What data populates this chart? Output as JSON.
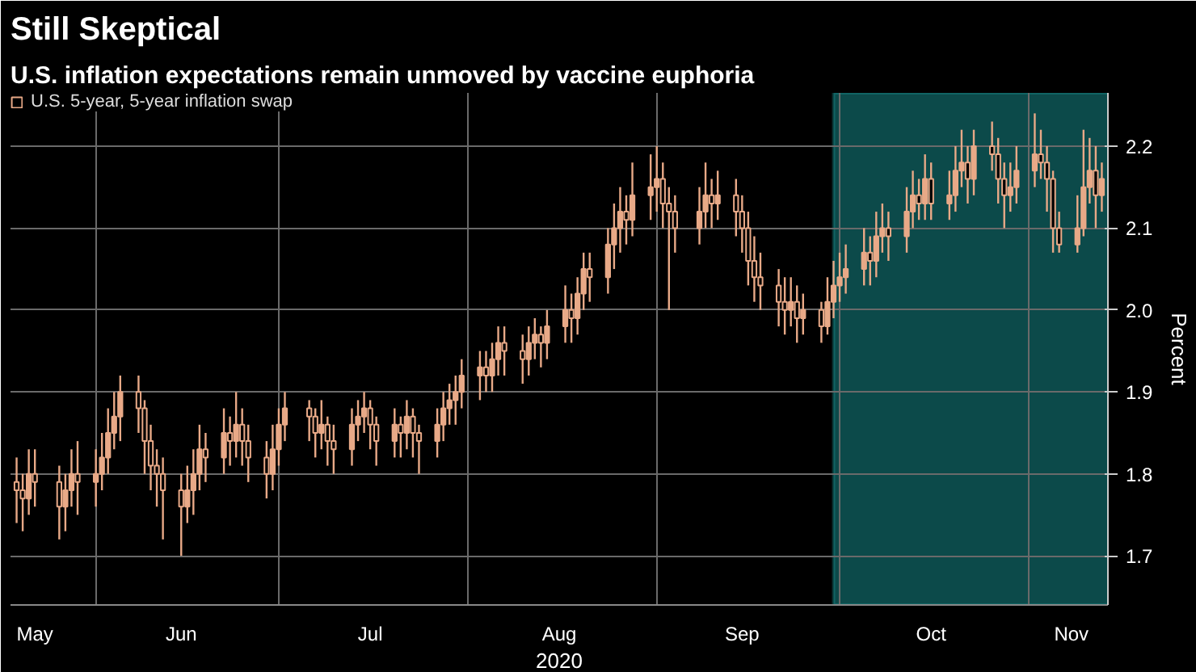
{
  "chart_data": {
    "type": "candlestick",
    "title": "Still Skeptical",
    "subtitle": "U.S. inflation expectations remain unmoved by vaccine euphoria",
    "xlabel": "2020",
    "ylabel": "Percent",
    "legend": "top left",
    "grid": true,
    "x": [
      "2020-05-19",
      "2020-05-20",
      "2020-05-21",
      "2020-05-22",
      "2020-05-26",
      "2020-05-27",
      "2020-05-28",
      "2020-05-29",
      "2020-06-01",
      "2020-06-02",
      "2020-06-03",
      "2020-06-04",
      "2020-06-05",
      "2020-06-08",
      "2020-06-09",
      "2020-06-10",
      "2020-06-11",
      "2020-06-12",
      "2020-06-15",
      "2020-06-16",
      "2020-06-17",
      "2020-06-18",
      "2020-06-19",
      "2020-06-22",
      "2020-06-23",
      "2020-06-24",
      "2020-06-25",
      "2020-06-26",
      "2020-06-29",
      "2020-06-30",
      "2020-07-01",
      "2020-07-02",
      "2020-07-06",
      "2020-07-07",
      "2020-07-08",
      "2020-07-09",
      "2020-07-10",
      "2020-07-13",
      "2020-07-14",
      "2020-07-15",
      "2020-07-16",
      "2020-07-17",
      "2020-07-20",
      "2020-07-21",
      "2020-07-22",
      "2020-07-23",
      "2020-07-24",
      "2020-07-27",
      "2020-07-28",
      "2020-07-29",
      "2020-07-30",
      "2020-07-31",
      "2020-08-03",
      "2020-08-04",
      "2020-08-05",
      "2020-08-06",
      "2020-08-07",
      "2020-08-10",
      "2020-08-11",
      "2020-08-12",
      "2020-08-13",
      "2020-08-14",
      "2020-08-17",
      "2020-08-18",
      "2020-08-19",
      "2020-08-20",
      "2020-08-21",
      "2020-08-24",
      "2020-08-25",
      "2020-08-26",
      "2020-08-27",
      "2020-08-28",
      "2020-08-31",
      "2020-09-01",
      "2020-09-02",
      "2020-09-03",
      "2020-09-04",
      "2020-09-08",
      "2020-09-09",
      "2020-09-10",
      "2020-09-11",
      "2020-09-14",
      "2020-09-15",
      "2020-09-16",
      "2020-09-17",
      "2020-09-18",
      "2020-09-21",
      "2020-09-22",
      "2020-09-23",
      "2020-09-24",
      "2020-09-25",
      "2020-09-28",
      "2020-09-29",
      "2020-09-30",
      "2020-10-01",
      "2020-10-02",
      "2020-10-05",
      "2020-10-06",
      "2020-10-07",
      "2020-10-08",
      "2020-10-09",
      "2020-10-12",
      "2020-10-13",
      "2020-10-14",
      "2020-10-15",
      "2020-10-16",
      "2020-10-19",
      "2020-10-20",
      "2020-10-21",
      "2020-10-22",
      "2020-10-23",
      "2020-10-26",
      "2020-10-27",
      "2020-10-28",
      "2020-10-29",
      "2020-10-30",
      "2020-11-02",
      "2020-11-03",
      "2020-11-04",
      "2020-11-05",
      "2020-11-06",
      "2020-11-09",
      "2020-11-10",
      "2020-11-11",
      "2020-11-12",
      "2020-11-13"
    ],
    "xlim": [
      "2020-05-18",
      "2020-11-14"
    ],
    "xticks": [
      {
        "value": "2020-05-22",
        "label": "May"
      },
      {
        "value": "2020-06-01",
        "label": null
      },
      {
        "value": "2020-06-15",
        "label": "Jun"
      },
      {
        "value": "2020-07-01",
        "label": null
      },
      {
        "value": "2020-07-16",
        "label": "Jul"
      },
      {
        "value": "2020-08-01",
        "label": null
      },
      {
        "value": "2020-08-16",
        "label": "Aug"
      },
      {
        "value": "2020-09-01",
        "label": null
      },
      {
        "value": "2020-09-15",
        "label": "Sep"
      },
      {
        "value": "2020-10-01",
        "label": null
      },
      {
        "value": "2020-10-16",
        "label": "Oct"
      },
      {
        "value": "2020-11-01",
        "label": null
      },
      {
        "value": "2020-11-08",
        "label": "Nov"
      }
    ],
    "ylim": [
      1.64,
      2.265
    ],
    "yticks": [
      1.7,
      1.8,
      1.9,
      {
        "value": 2.0,
        "label": "2.0"
      },
      2.1,
      2.2
    ],
    "bands": [
      {
        "axis": "x",
        "from": "2020-09-30",
        "to": "2020-11-16",
        "color": "#1aa3a3"
      }
    ],
    "series": [
      {
        "name": "U.S. 5-year, 5-year inflation swap",
        "color": "#e8a987",
        "ohlc": [
          [
            1.79,
            1.82,
            1.74,
            1.78
          ],
          [
            1.78,
            1.8,
            1.73,
            1.77
          ],
          [
            1.77,
            1.83,
            1.75,
            1.8
          ],
          [
            1.8,
            1.83,
            1.76,
            1.79
          ],
          [
            1.79,
            1.81,
            1.72,
            1.76
          ],
          [
            1.76,
            1.8,
            1.73,
            1.78
          ],
          [
            1.78,
            1.83,
            1.76,
            1.8
          ],
          [
            1.8,
            1.84,
            1.75,
            1.79
          ],
          [
            1.79,
            1.83,
            1.76,
            1.8
          ],
          [
            1.8,
            1.85,
            1.78,
            1.82
          ],
          [
            1.82,
            1.88,
            1.8,
            1.85
          ],
          [
            1.85,
            1.9,
            1.83,
            1.87
          ],
          [
            1.87,
            1.92,
            1.84,
            1.9
          ],
          [
            1.9,
            1.92,
            1.85,
            1.88
          ],
          [
            1.88,
            1.89,
            1.8,
            1.84
          ],
          [
            1.84,
            1.86,
            1.78,
            1.81
          ],
          [
            1.81,
            1.83,
            1.76,
            1.8
          ],
          [
            1.8,
            1.82,
            1.72,
            1.78
          ],
          [
            1.78,
            1.8,
            1.7,
            1.76
          ],
          [
            1.76,
            1.81,
            1.74,
            1.78
          ],
          [
            1.78,
            1.83,
            1.75,
            1.8
          ],
          [
            1.8,
            1.86,
            1.78,
            1.83
          ],
          [
            1.83,
            1.85,
            1.79,
            1.82
          ],
          [
            1.82,
            1.88,
            1.8,
            1.85
          ],
          [
            1.85,
            1.87,
            1.81,
            1.84
          ],
          [
            1.84,
            1.9,
            1.82,
            1.86
          ],
          [
            1.86,
            1.88,
            1.81,
            1.84
          ],
          [
            1.84,
            1.86,
            1.79,
            1.82
          ],
          [
            1.82,
            1.84,
            1.77,
            1.8
          ],
          [
            1.8,
            1.86,
            1.78,
            1.83
          ],
          [
            1.83,
            1.88,
            1.81,
            1.86
          ],
          [
            1.86,
            1.9,
            1.84,
            1.88
          ],
          [
            1.88,
            1.89,
            1.84,
            1.87
          ],
          [
            1.87,
            1.88,
            1.82,
            1.85
          ],
          [
            1.85,
            1.89,
            1.83,
            1.86
          ],
          [
            1.86,
            1.87,
            1.81,
            1.84
          ],
          [
            1.84,
            1.86,
            1.8,
            1.83
          ],
          [
            1.83,
            1.88,
            1.81,
            1.86
          ],
          [
            1.86,
            1.89,
            1.84,
            1.87
          ],
          [
            1.87,
            1.9,
            1.85,
            1.88
          ],
          [
            1.88,
            1.89,
            1.83,
            1.86
          ],
          [
            1.86,
            1.87,
            1.81,
            1.84
          ],
          [
            1.84,
            1.88,
            1.82,
            1.86
          ],
          [
            1.86,
            1.87,
            1.82,
            1.85
          ],
          [
            1.85,
            1.89,
            1.83,
            1.87
          ],
          [
            1.87,
            1.88,
            1.82,
            1.85
          ],
          [
            1.85,
            1.86,
            1.8,
            1.84
          ],
          [
            1.84,
            1.88,
            1.82,
            1.86
          ],
          [
            1.86,
            1.9,
            1.84,
            1.88
          ],
          [
            1.88,
            1.91,
            1.86,
            1.89
          ],
          [
            1.89,
            1.92,
            1.86,
            1.9
          ],
          [
            1.9,
            1.94,
            1.88,
            1.92
          ],
          [
            1.92,
            1.95,
            1.89,
            1.93
          ],
          [
            1.93,
            1.95,
            1.9,
            1.92
          ],
          [
            1.92,
            1.96,
            1.9,
            1.94
          ],
          [
            1.94,
            1.98,
            1.92,
            1.96
          ],
          [
            1.96,
            1.98,
            1.92,
            1.95
          ],
          [
            1.95,
            1.97,
            1.91,
            1.94
          ],
          [
            1.94,
            1.98,
            1.92,
            1.96
          ],
          [
            1.96,
            1.99,
            1.94,
            1.97
          ],
          [
            1.97,
            1.98,
            1.93,
            1.96
          ],
          [
            1.96,
            2.0,
            1.94,
            1.98
          ],
          [
            1.98,
            2.03,
            1.96,
            2.0
          ],
          [
            2.0,
            2.02,
            1.96,
            1.99
          ],
          [
            1.99,
            2.04,
            1.97,
            2.02
          ],
          [
            2.02,
            2.07,
            2.0,
            2.05
          ],
          [
            2.05,
            2.07,
            2.01,
            2.04
          ],
          [
            2.04,
            2.1,
            2.02,
            2.08
          ],
          [
            2.08,
            2.13,
            2.05,
            2.1
          ],
          [
            2.1,
            2.15,
            2.07,
            2.12
          ],
          [
            2.12,
            2.14,
            2.08,
            2.11
          ],
          [
            2.11,
            2.18,
            2.09,
            2.14
          ],
          [
            2.14,
            2.19,
            2.11,
            2.15
          ],
          [
            2.15,
            2.2,
            2.12,
            2.16
          ],
          [
            2.16,
            2.18,
            2.1,
            2.13
          ],
          [
            2.13,
            2.15,
            2.0,
            2.12
          ],
          [
            2.12,
            2.14,
            2.07,
            2.1
          ],
          [
            2.1,
            2.15,
            2.08,
            2.12
          ],
          [
            2.12,
            2.18,
            2.1,
            2.14
          ],
          [
            2.14,
            2.16,
            2.1,
            2.13
          ],
          [
            2.13,
            2.17,
            2.11,
            2.14
          ],
          [
            2.14,
            2.16,
            2.09,
            2.12
          ],
          [
            2.12,
            2.14,
            2.07,
            2.1
          ],
          [
            2.1,
            2.12,
            2.03,
            2.06
          ],
          [
            2.06,
            2.09,
            2.01,
            2.04
          ],
          [
            2.04,
            2.07,
            2.0,
            2.03
          ],
          [
            2.03,
            2.05,
            1.98,
            2.01
          ],
          [
            2.01,
            2.04,
            1.97,
            2.0
          ],
          [
            2.0,
            2.04,
            1.98,
            2.01
          ],
          [
            2.01,
            2.03,
            1.96,
            1.99
          ],
          [
            1.99,
            2.02,
            1.97,
            2.0
          ],
          [
            2.0,
            2.01,
            1.96,
            1.98
          ],
          [
            1.98,
            2.04,
            1.97,
            2.01
          ],
          [
            2.01,
            2.06,
            1.99,
            2.03
          ],
          [
            2.03,
            2.07,
            2.01,
            2.04
          ],
          [
            2.04,
            2.08,
            2.02,
            2.05
          ],
          [
            2.05,
            2.1,
            2.03,
            2.07
          ],
          [
            2.07,
            2.09,
            2.03,
            2.06
          ],
          [
            2.06,
            2.12,
            2.04,
            2.09
          ],
          [
            2.09,
            2.13,
            2.07,
            2.1
          ],
          [
            2.1,
            2.12,
            2.06,
            2.09
          ],
          [
            2.09,
            2.15,
            2.07,
            2.12
          ],
          [
            2.12,
            2.17,
            2.1,
            2.14
          ],
          [
            2.14,
            2.16,
            2.11,
            2.13
          ],
          [
            2.13,
            2.19,
            2.11,
            2.16
          ],
          [
            2.16,
            2.18,
            2.11,
            2.13
          ],
          [
            2.13,
            2.17,
            2.11,
            2.14
          ],
          [
            2.14,
            2.2,
            2.12,
            2.17
          ],
          [
            2.17,
            2.22,
            2.15,
            2.18
          ],
          [
            2.18,
            2.2,
            2.13,
            2.16
          ],
          [
            2.16,
            2.22,
            2.14,
            2.2
          ],
          [
            2.2,
            2.23,
            2.17,
            2.19
          ],
          [
            2.19,
            2.21,
            2.13,
            2.16
          ],
          [
            2.16,
            2.18,
            2.1,
            2.14
          ],
          [
            2.14,
            2.18,
            2.12,
            2.15
          ],
          [
            2.15,
            2.2,
            2.13,
            2.17
          ],
          [
            2.17,
            2.24,
            2.15,
            2.19
          ],
          [
            2.19,
            2.22,
            2.16,
            2.18
          ],
          [
            2.18,
            2.2,
            2.12,
            2.16
          ],
          [
            2.16,
            2.17,
            2.07,
            2.1
          ],
          [
            2.1,
            2.12,
            2.07,
            2.08
          ],
          [
            2.08,
            2.14,
            2.07,
            2.1
          ],
          [
            2.1,
            2.22,
            2.09,
            2.15
          ],
          [
            2.15,
            2.21,
            2.13,
            2.17
          ],
          [
            2.17,
            2.2,
            2.1,
            2.14
          ],
          [
            2.14,
            2.18,
            2.12,
            2.16
          ]
        ]
      }
    ]
  }
}
